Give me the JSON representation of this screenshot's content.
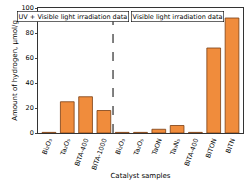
{
  "chart_data": {
    "type": "bar",
    "x_label": "Catalyst samples",
    "y_label": "Amount of hydrogen, µmol/g",
    "categories": [
      "Bi₂O₃",
      "Ta₂O₅",
      "BITA-400",
      "BITA-1000",
      "Bi₂O₃",
      "Ta₂O₅",
      "TaON",
      "Ta₃N₅",
      "BITA-400",
      "BITON",
      "BITN"
    ],
    "values": [
      0.5,
      25,
      29,
      18,
      0.5,
      0.5,
      3,
      6,
      0.5,
      68,
      92
    ],
    "color": "#f08c3c",
    "ylim": [
      0,
      100
    ],
    "yticks": [
      0,
      20,
      40,
      60,
      80,
      100
    ],
    "grid": false,
    "annotations": [
      "UV + Visible light irradiation data",
      "Visible light irradiation data"
    ]
  }
}
